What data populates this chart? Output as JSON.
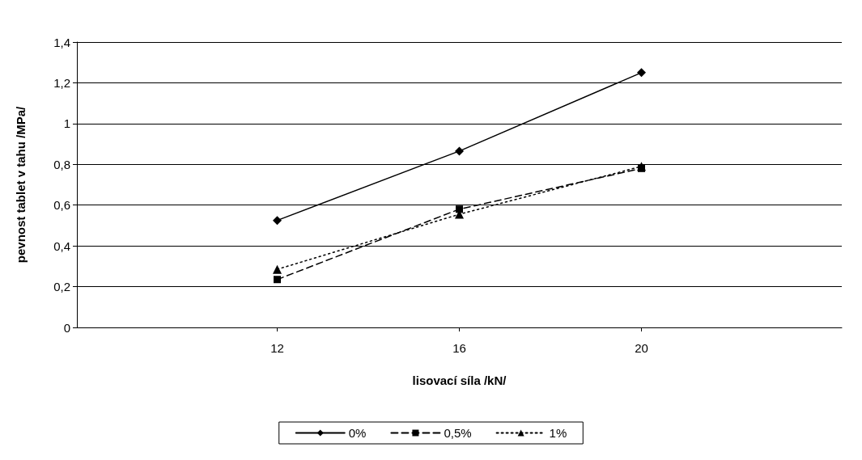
{
  "chart_data": {
    "type": "line",
    "xlabel": "lisovací síla /kN/",
    "ylabel": "pevnost tablet v tahu /MPa/",
    "x": [
      12,
      16,
      20
    ],
    "xlim": [
      7.6,
      24.4
    ],
    "xticks": [
      12,
      16,
      20
    ],
    "ylim": [
      0,
      1.4
    ],
    "yticks": [
      0,
      {
        "value": 0.2,
        "label": "0,2"
      },
      {
        "value": 0.4,
        "label": "0,4"
      },
      {
        "value": 0.6,
        "label": "0,6"
      },
      {
        "value": 0.8,
        "label": "0,8"
      },
      1,
      {
        "value": 1.2,
        "label": "1,2"
      },
      {
        "value": 1.4,
        "label": "1,4"
      }
    ],
    "grid": "y",
    "legend": "bottom",
    "series": [
      {
        "name": "0%",
        "color": "#000000",
        "values": [
          0.525,
          0.865,
          1.25
        ],
        "marker": "diamond",
        "line_style": "solid"
      },
      {
        "name": "0,5%",
        "color": "#000000",
        "values": [
          0.235,
          0.58,
          0.78
        ],
        "marker": "square",
        "line_style": "dashed"
      },
      {
        "name": "1%",
        "color": "#000000",
        "values": [
          0.285,
          0.555,
          0.79
        ],
        "marker": "triangle",
        "line_style": "dotted"
      }
    ]
  }
}
